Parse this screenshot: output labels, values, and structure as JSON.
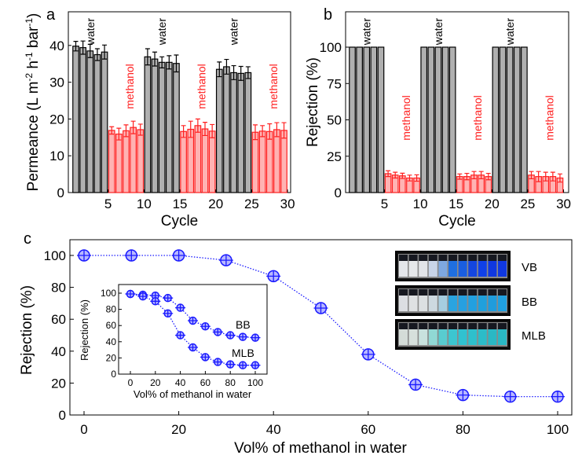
{
  "chart_data": [
    {
      "type": "bar",
      "panel_label": "a",
      "xlabel": "Cycle",
      "ylabel": "Permeance (L m-2 h-1 bar-1)",
      "ylabel_parts": [
        "Permeance (L m",
        "-2",
        " h",
        "-1",
        " bar",
        "-1",
        ")"
      ],
      "xticks": [
        5,
        10,
        15,
        20,
        25,
        30
      ],
      "yticks": [
        0,
        10,
        20,
        30,
        40
      ],
      "ylim": [
        0,
        49
      ],
      "annotations": [
        "water",
        "methanol",
        "water",
        "methanol",
        "water",
        "methanol"
      ],
      "colors": {
        "water": "#b0b0b0",
        "methanol": "#ffb3b3",
        "methanol_edge": "#ff2020",
        "water_edge": "#000000"
      },
      "values": [
        39.8,
        39.4,
        38.5,
        37.5,
        38.2,
        16.9,
        15.9,
        16.8,
        17.7,
        17.1,
        36.9,
        36.3,
        35.4,
        35.4,
        35.1,
        16.6,
        17.2,
        18.2,
        17.3,
        16.7,
        33.5,
        34.2,
        32.6,
        32.4,
        32.6,
        16.4,
        16.7,
        16.6,
        17.1,
        16.9
      ],
      "errors": [
        1.3,
        1.8,
        1.8,
        1.6,
        1.9,
        1.0,
        1.6,
        1.6,
        1.7,
        1.5,
        2.2,
        1.9,
        1.5,
        1.8,
        2.3,
        1.6,
        2.2,
        1.8,
        1.8,
        1.8,
        2.0,
        2.0,
        1.9,
        1.9,
        1.6,
        2.0,
        1.5,
        2.1,
        1.9,
        2.1
      ]
    },
    {
      "type": "bar",
      "panel_label": "b",
      "xlabel": "Cycle",
      "ylabel": "Rejection (%)",
      "xticks": [
        5,
        10,
        15,
        20,
        25,
        30
      ],
      "yticks": [
        0,
        25,
        50,
        75,
        100
      ],
      "ylim": [
        0,
        126
      ],
      "annotations": [
        "water",
        "methanol",
        "water",
        "methanol",
        "water",
        "methanol"
      ],
      "values": [
        100,
        100,
        100,
        100,
        100,
        13,
        12,
        11.5,
        10,
        10,
        100,
        100,
        100,
        100,
        100,
        11,
        11,
        12,
        12,
        11,
        100,
        100,
        100,
        100,
        100,
        12,
        11,
        11,
        11,
        10
      ],
      "errors": [
        0,
        0,
        0,
        0,
        0,
        2,
        2,
        1.8,
        2,
        2.2,
        0,
        0,
        0,
        0,
        0,
        1.8,
        2.2,
        2.5,
        2.5,
        2.2,
        0,
        0,
        0,
        0,
        0,
        2.5,
        3.5,
        3,
        3,
        2.8
      ]
    },
    {
      "type": "line",
      "panel_label": "c",
      "xlabel": "Vol% of methanol in water",
      "ylabel": "Rejection (%)",
      "xticks": [
        0,
        20,
        40,
        60,
        80,
        100
      ],
      "yticks": [
        0,
        20,
        40,
        60,
        80,
        100
      ],
      "xlim": [
        0,
        100
      ],
      "ylim": [
        0,
        100
      ],
      "color": "#1a1aff",
      "x": [
        0,
        10,
        20,
        30,
        40,
        50,
        60,
        70,
        80,
        90,
        100
      ],
      "series": [
        {
          "name": "VB",
          "values": [
            100,
            100,
            100,
            97,
            87,
            67,
            38,
            19,
            12.5,
            11.5,
            11.5
          ]
        }
      ],
      "photo_labels": [
        "VB",
        "BB",
        "MLB"
      ],
      "inset": {
        "type": "line",
        "xlabel": "Vol% of methanol in water",
        "ylabel": "Rejection (%)",
        "xticks": [
          0,
          20,
          40,
          60,
          80,
          100
        ],
        "yticks": [
          0,
          20,
          40,
          60,
          80,
          100
        ],
        "x": [
          0,
          10,
          20,
          30,
          40,
          50,
          60,
          70,
          80,
          90,
          100
        ],
        "series": [
          {
            "name": "BB",
            "values": [
              99,
              98,
              97,
              94,
              82,
              66,
              59,
              52,
              48,
              46,
              45
            ]
          },
          {
            "name": "MLB",
            "values": [
              99,
              96,
              90,
              75,
              48,
              33,
              21,
              15,
              12,
              11,
              11
            ]
          }
        ]
      }
    }
  ]
}
